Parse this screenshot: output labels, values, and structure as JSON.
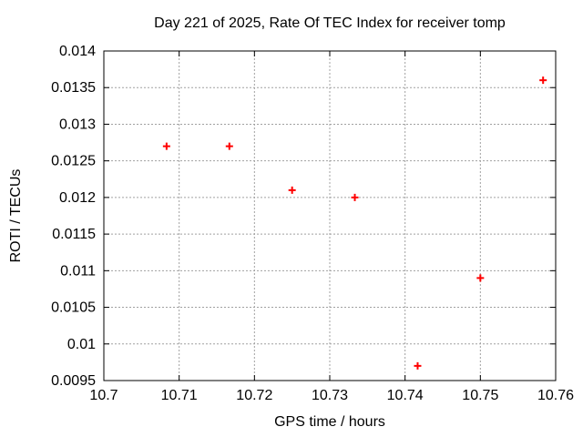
{
  "chart_data": {
    "type": "scatter",
    "title": "Day 221 of 2025, Rate Of TEC Index for receiver tomp",
    "xlabel": "GPS time / hours",
    "ylabel": "ROTI / TECUs",
    "x": [
      10.70833,
      10.71667,
      10.725,
      10.73333,
      10.74167,
      10.75,
      10.75833
    ],
    "y": [
      0.0127,
      0.0127,
      0.0121,
      0.012,
      0.0097,
      0.0109,
      0.0136
    ],
    "xlim": [
      10.7,
      10.76
    ],
    "ylim": [
      0.0095,
      0.014
    ],
    "xticks": [
      10.7,
      10.71,
      10.72,
      10.73,
      10.74,
      10.75,
      10.76
    ],
    "xtick_labels": [
      "10.7",
      "10.71",
      "10.72",
      "10.73",
      "10.74",
      "10.75",
      "10.76"
    ],
    "yticks": [
      0.0095,
      0.01,
      0.0105,
      0.011,
      0.0115,
      0.012,
      0.0125,
      0.013,
      0.0135,
      0.014
    ],
    "ytick_labels": [
      "0.0095",
      "0.01",
      "0.0105",
      "0.011",
      "0.0115",
      "0.012",
      "0.0125",
      "0.013",
      "0.0135",
      "0.014"
    ],
    "grid": true,
    "legend": "none",
    "marker": "plus",
    "marker_color": "#ff0000",
    "grid_color": "#a0a0a0",
    "axis_color": "#000000",
    "text_color": "#000000",
    "background_color": "#ffffff"
  }
}
